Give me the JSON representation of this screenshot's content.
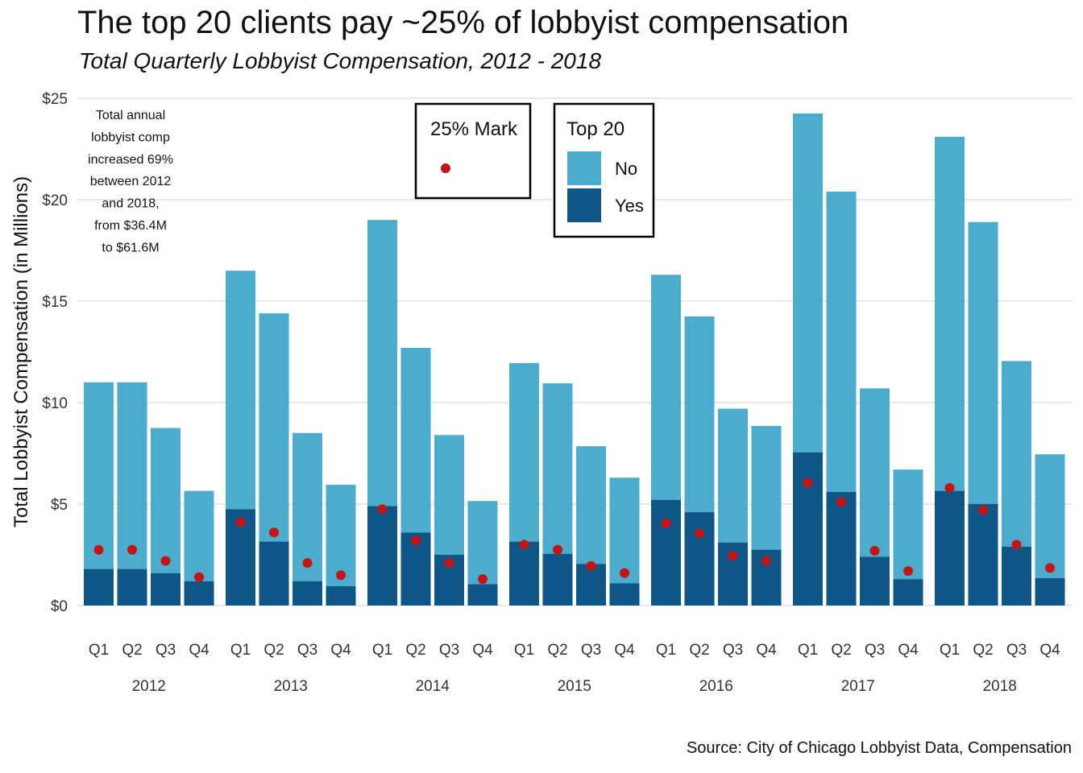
{
  "title": "The top 20 clients pay ~25% of lobbyist compensation",
  "subtitle": "Total Quarterly Lobbyist Compensation, 2012 - 2018",
  "caption": "Source: City of Chicago Lobbyist Data, Compensation",
  "colors": {
    "no": "#4bacce",
    "yes": "#0f5688",
    "mark": "#c41414",
    "grid": "#d9d9d9"
  },
  "chart_data": {
    "type": "bar",
    "stacked": true,
    "ylabel": "Total Lobbyist Compensation (in Millions)",
    "ylim": [
      0,
      25
    ],
    "yticks": [
      0,
      5,
      10,
      15,
      20,
      25
    ],
    "ytick_labels": [
      "$0",
      "$5",
      "$10",
      "$15",
      "$20",
      "$25"
    ],
    "years": [
      "2012",
      "2013",
      "2014",
      "2015",
      "2016",
      "2017",
      "2018"
    ],
    "quarters": [
      "Q1",
      "Q2",
      "Q3",
      "Q4"
    ],
    "series": [
      {
        "name": "Yes",
        "values": [
          1.8,
          1.8,
          1.6,
          1.2,
          4.75,
          3.15,
          1.2,
          0.95,
          4.9,
          3.6,
          2.5,
          1.05,
          3.15,
          2.55,
          2.05,
          1.1,
          5.2,
          4.6,
          3.1,
          2.75,
          7.55,
          5.6,
          2.4,
          1.3,
          5.65,
          5.0,
          2.9,
          1.35
        ]
      },
      {
        "name": "No",
        "values": [
          9.2,
          9.2,
          7.15,
          4.45,
          11.75,
          11.25,
          7.3,
          5.0,
          14.1,
          9.1,
          5.9,
          4.1,
          8.8,
          8.4,
          5.8,
          5.2,
          11.1,
          9.65,
          6.6,
          6.1,
          16.7,
          14.8,
          8.3,
          5.4,
          17.45,
          13.9,
          9.15,
          6.1
        ]
      }
    ],
    "totals": [
      11.0,
      11.0,
      8.75,
      5.65,
      16.5,
      14.4,
      8.5,
      5.95,
      19.0,
      12.7,
      8.4,
      5.15,
      11.95,
      10.95,
      7.85,
      6.3,
      16.3,
      14.25,
      9.7,
      8.85,
      24.25,
      20.4,
      10.7,
      6.7,
      23.1,
      18.9,
      12.05,
      7.45
    ],
    "mark_25pct": [
      2.75,
      2.75,
      2.2,
      1.4,
      4.1,
      3.6,
      2.1,
      1.5,
      4.75,
      3.2,
      2.1,
      1.3,
      3.0,
      2.75,
      1.95,
      1.6,
      4.05,
      3.55,
      2.45,
      2.2,
      6.05,
      5.1,
      2.7,
      1.7,
      5.8,
      4.7,
      3.0,
      1.85
    ],
    "legends": {
      "mark_title": "25% Mark",
      "fill_title": "Top 20",
      "fill_items": [
        "No",
        "Yes"
      ]
    },
    "annotation": [
      "Total annual",
      "lobbyist comp",
      "increased 69%",
      "between 2012",
      "and 2018,",
      "from $36.4M",
      "to $61.6M"
    ],
    "grid": true
  }
}
